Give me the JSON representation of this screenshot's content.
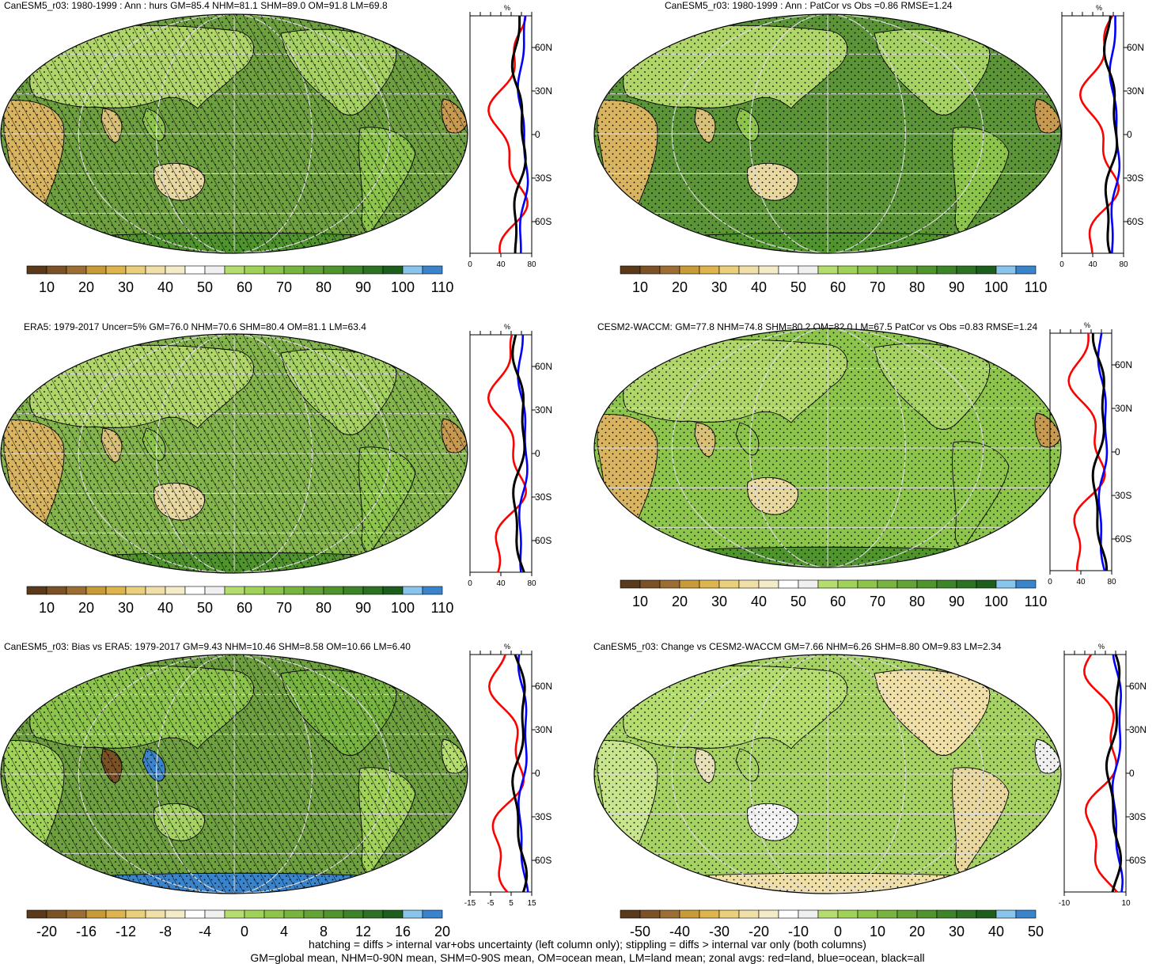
{
  "panels": [
    {
      "title": "CanESM5_r03: 1980-1999 : Ann : hurs GM=85.4 NHM=81.1 SHM=89.0 OM=91.8 LM=69.8",
      "base": "#6ea040",
      "hatch": true,
      "stipple": true,
      "field": "mean",
      "zonal_ticks": [
        "0",
        "40",
        "80"
      ],
      "zonal_unit": "%",
      "colorbar_labels": [
        "10",
        "20",
        "30",
        "40",
        "50",
        "60",
        "70",
        "80",
        "90",
        "100",
        "110"
      ],
      "colorbar_colors": [
        "#5a3a1a",
        "#7a5226",
        "#9c6e34",
        "#c89a38",
        "#ddb44e",
        "#ead07c",
        "#f0e0a8",
        "#f4ecc8",
        "#ffffff",
        "#f0f0f0",
        "#b4dc6e",
        "#a0d25a",
        "#8cc44c",
        "#78b440",
        "#64a436",
        "#50942e",
        "#3c8428",
        "#2c7222",
        "#1e5e1c",
        "#88c4ec",
        "#3a84cc"
      ]
    },
    {
      "title": "CanESM5_r03: 1980-1999 : Ann : PatCor vs Obs =0.86 RMSE=1.24",
      "base": "#5c9438",
      "hatch": false,
      "stipple": true,
      "field": "mean",
      "zonal_ticks": [
        "0",
        "40",
        "80"
      ],
      "zonal_unit": "%",
      "colorbar_labels": [
        "10",
        "20",
        "30",
        "40",
        "50",
        "60",
        "70",
        "80",
        "90",
        "100",
        "110"
      ],
      "colorbar_colors": [
        "#5a3a1a",
        "#7a5226",
        "#9c6e34",
        "#c89a38",
        "#ddb44e",
        "#ead07c",
        "#f0e0a8",
        "#f4ecc8",
        "#ffffff",
        "#f0f0f0",
        "#b4dc6e",
        "#a0d25a",
        "#8cc44c",
        "#78b440",
        "#64a436",
        "#50942e",
        "#3c8428",
        "#2c7222",
        "#1e5e1c",
        "#88c4ec",
        "#3a84cc"
      ]
    },
    {
      "title": "ERA5: 1979-2017 Uncer=5% GM=76.0 NHM=70.6 SHM=80.4 OM=81.1 LM=63.4",
      "base": "#84b44c",
      "hatch": true,
      "stipple": true,
      "field": "mean",
      "zonal_ticks": [
        "0",
        "40",
        "80"
      ],
      "zonal_unit": "%",
      "colorbar_labels": [
        "10",
        "20",
        "30",
        "40",
        "50",
        "60",
        "70",
        "80",
        "90",
        "100",
        "110"
      ],
      "colorbar_colors": [
        "#5a3a1a",
        "#7a5226",
        "#9c6e34",
        "#c89a38",
        "#ddb44e",
        "#ead07c",
        "#f0e0a8",
        "#f4ecc8",
        "#ffffff",
        "#f0f0f0",
        "#b4dc6e",
        "#a0d25a",
        "#8cc44c",
        "#78b440",
        "#64a436",
        "#50942e",
        "#3c8428",
        "#2c7222",
        "#1e5e1c",
        "#88c4ec",
        "#3a84cc"
      ]
    },
    {
      "title": "CESM2-WACCM: GM=77.8 NHM=74.8 SHM=80.2 OM=82.0 LM=67.5 PatCor vs Obs =0.83 RMSE=1.24",
      "base": "#8cc44c",
      "hatch": false,
      "stipple": true,
      "field": "mean",
      "zonal_ticks": [
        "0",
        "40",
        "80"
      ],
      "zonal_unit": "%",
      "colorbar_labels": [
        "10",
        "20",
        "30",
        "40",
        "50",
        "60",
        "70",
        "80",
        "90",
        "100",
        "110"
      ],
      "colorbar_colors": [
        "#5a3a1a",
        "#7a5226",
        "#9c6e34",
        "#c89a38",
        "#ddb44e",
        "#ead07c",
        "#f0e0a8",
        "#f4ecc8",
        "#ffffff",
        "#f0f0f0",
        "#b4dc6e",
        "#a0d25a",
        "#8cc44c",
        "#78b440",
        "#64a436",
        "#50942e",
        "#3c8428",
        "#2c7222",
        "#1e5e1c",
        "#88c4ec",
        "#3a84cc"
      ]
    },
    {
      "title": "CanESM5_r03: Bias vs ERA5: 1979-2017 GM=9.43 NHM=10.46 SHM=8.58 OM=10.66 LM=6.40",
      "base": "#6ea040",
      "hatch": true,
      "stipple": true,
      "field": "bias",
      "zonal_ticks": [
        "-15",
        "-5",
        "5",
        "15"
      ],
      "zonal_unit": "%",
      "colorbar_labels": [
        "-20",
        "-16",
        "-12",
        "-8",
        "-4",
        "0",
        "4",
        "8",
        "12",
        "16",
        "20"
      ],
      "colorbar_colors": [
        "#5a3a1a",
        "#7a5226",
        "#9c6e34",
        "#c89a38",
        "#ddb44e",
        "#ead07c",
        "#f0e0a8",
        "#f4ecc8",
        "#ffffff",
        "#f0f0f0",
        "#b4dc6e",
        "#a0d25a",
        "#8cc44c",
        "#78b440",
        "#64a436",
        "#50942e",
        "#3c8428",
        "#2c7222",
        "#1e5e1c",
        "#88c4ec",
        "#3a84cc"
      ]
    },
    {
      "title": "CanESM5_r03: Change vs CESM2-WACCM GM=7.66 NHM=6.26 SHM=8.80 OM=9.83 LM=2.34",
      "base": "#a6d264",
      "hatch": false,
      "stipple": true,
      "field": "change",
      "zonal_ticks": [
        "-10",
        "10"
      ],
      "zonal_unit": "%",
      "colorbar_labels": [
        "-50",
        "-40",
        "-30",
        "-20",
        "-10",
        "0",
        "10",
        "20",
        "30",
        "40",
        "50"
      ],
      "colorbar_colors": [
        "#5a3a1a",
        "#7a5226",
        "#9c6e34",
        "#c89a38",
        "#ddb44e",
        "#ead07c",
        "#f0e0a8",
        "#f4ecc8",
        "#ffffff",
        "#f0f0f0",
        "#b4dc6e",
        "#a0d25a",
        "#8cc44c",
        "#78b440",
        "#64a436",
        "#50942e",
        "#3c8428",
        "#2c7222",
        "#1e5e1c",
        "#88c4ec",
        "#3a84cc"
      ]
    }
  ],
  "lat_labels": [
    "60N",
    "30N",
    "0",
    "30S",
    "60S"
  ],
  "footer": {
    "line1": "hatching = diffs > internal var+obs uncertainty (left column only); stippling = diffs > internal var only (both columns)",
    "line2": "GM=global mean, NHM=0-90N mean, SHM=0-90S mean, OM=ocean mean, LM=land mean; zonal avgs: red=land, blue=ocean, black=all"
  },
  "line_colors": {
    "land": "#ff0000",
    "ocean": "#0000ff",
    "all": "#000000"
  }
}
